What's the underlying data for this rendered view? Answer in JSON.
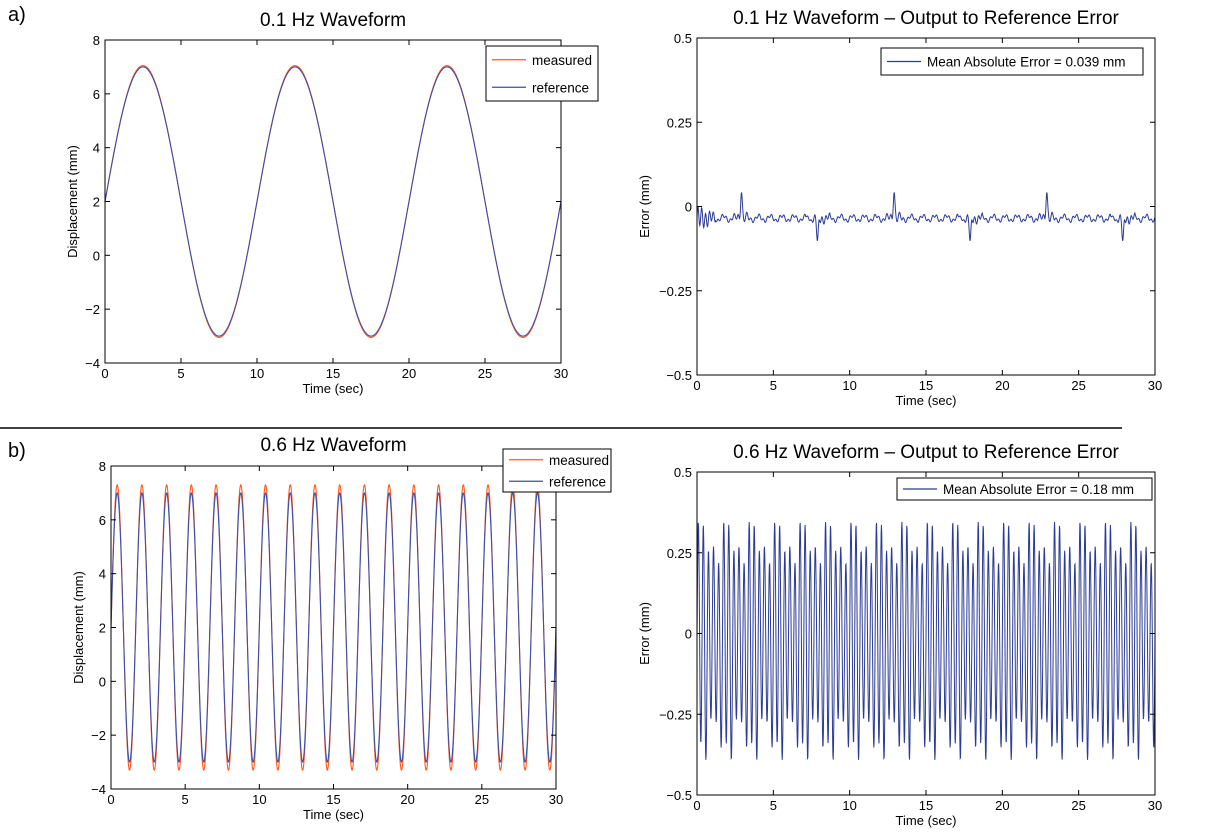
{
  "panel_labels": [
    "a)",
    "b)"
  ],
  "colors": {
    "measured": "#ff5a1e",
    "reference": "#3f4ea8",
    "error": "#2b3b97",
    "axis": "#000000",
    "divider": "#000000"
  },
  "chart_data": [
    {
      "id": "a-left",
      "type": "line",
      "title": "0.1 Hz Waveform",
      "xlabel": "Time (sec)",
      "ylabel": "Displacement (mm)",
      "xlim": [
        0,
        30
      ],
      "ylim": [
        -4,
        8
      ],
      "xticks": [
        0,
        5,
        10,
        15,
        20,
        25,
        30
      ],
      "yticks": [
        -4,
        -2,
        0,
        2,
        4,
        6,
        8
      ],
      "xtick_labels": [
        "0",
        "5",
        "10",
        "15",
        "20",
        "25",
        "30"
      ],
      "ytick_labels": [
        "−4",
        "−2",
        "0",
        "2",
        "4",
        "6",
        "8"
      ],
      "legend": [
        "measured",
        "reference"
      ],
      "series": [
        {
          "name": "measured",
          "waveform": "sine",
          "freq_hz": 0.1,
          "offset": 2,
          "amplitude": 5.05
        },
        {
          "name": "reference",
          "waveform": "sine",
          "freq_hz": 0.1,
          "offset": 2,
          "amplitude": 5.0
        }
      ]
    },
    {
      "id": "a-right",
      "type": "line",
      "title": "0.1 Hz Waveform – Output to Reference Error",
      "xlabel": "Time (sec)",
      "ylabel": "Error (mm)",
      "xlim": [
        0,
        30
      ],
      "ylim": [
        -0.5,
        0.5
      ],
      "xticks": [
        0,
        5,
        10,
        15,
        20,
        25,
        30
      ],
      "yticks": [
        -0.5,
        -0.25,
        0,
        0.25,
        0.5
      ],
      "xtick_labels": [
        "0",
        "5",
        "10",
        "15",
        "20",
        "25",
        "30"
      ],
      "ytick_labels": [
        "−0.5",
        "−0.25",
        "0",
        "0.25",
        "0.5"
      ],
      "legend": [
        "Mean Absolute Error = 0.039 mm"
      ],
      "series": [
        {
          "name": "Mean Absolute Error = 0.039 mm",
          "waveform": "error-low",
          "baseline": -0.035,
          "spike_up_times": [
            2.9,
            12.9,
            22.9
          ],
          "spike_down_times": [
            7.9,
            17.9,
            27.9
          ],
          "spike_peak": 0.05,
          "spike_trough": -0.11
        }
      ]
    },
    {
      "id": "b-left",
      "type": "line",
      "title": "0.6 Hz Waveform",
      "xlabel": "Time (sec)",
      "ylabel": "Displacement (mm)",
      "xlim": [
        0,
        30
      ],
      "ylim": [
        -4,
        8
      ],
      "xticks": [
        0,
        5,
        10,
        15,
        20,
        25,
        30
      ],
      "yticks": [
        -4,
        -2,
        0,
        2,
        4,
        6,
        8
      ],
      "xtick_labels": [
        "0",
        "5",
        "10",
        "15",
        "20",
        "25",
        "30"
      ],
      "ytick_labels": [
        "−4",
        "−2",
        "0",
        "2",
        "4",
        "6",
        "8"
      ],
      "legend": [
        "measured",
        "reference"
      ],
      "series": [
        {
          "name": "measured",
          "waveform": "sine",
          "freq_hz": 0.6,
          "offset": 2,
          "amplitude": 5.3
        },
        {
          "name": "reference",
          "waveform": "sine",
          "freq_hz": 0.6,
          "offset": 2,
          "amplitude": 5.0
        }
      ]
    },
    {
      "id": "b-right",
      "type": "line",
      "title": "0.6 Hz Waveform – Output to Reference Error",
      "xlabel": "Time (sec)",
      "ylabel": "Error (mm)",
      "xlim": [
        0,
        30
      ],
      "ylim": [
        -0.5,
        0.5
      ],
      "xticks": [
        0,
        5,
        10,
        15,
        20,
        25,
        30
      ],
      "yticks": [
        -0.5,
        -0.25,
        0,
        0.25,
        0.5
      ],
      "xtick_labels": [
        "0",
        "5",
        "10",
        "15",
        "20",
        "25",
        "30"
      ],
      "ytick_labels": [
        "−0.5",
        "−0.25",
        "0",
        "0.25",
        "0.5"
      ],
      "legend": [
        "Mean Absolute Error = 0.18 mm"
      ],
      "series": [
        {
          "name": "Mean Absolute Error = 0.18 mm",
          "waveform": "error-high",
          "freq_hz": 3.0,
          "amplitude_min": 0.25,
          "amplitude_max": 0.36
        }
      ]
    }
  ]
}
